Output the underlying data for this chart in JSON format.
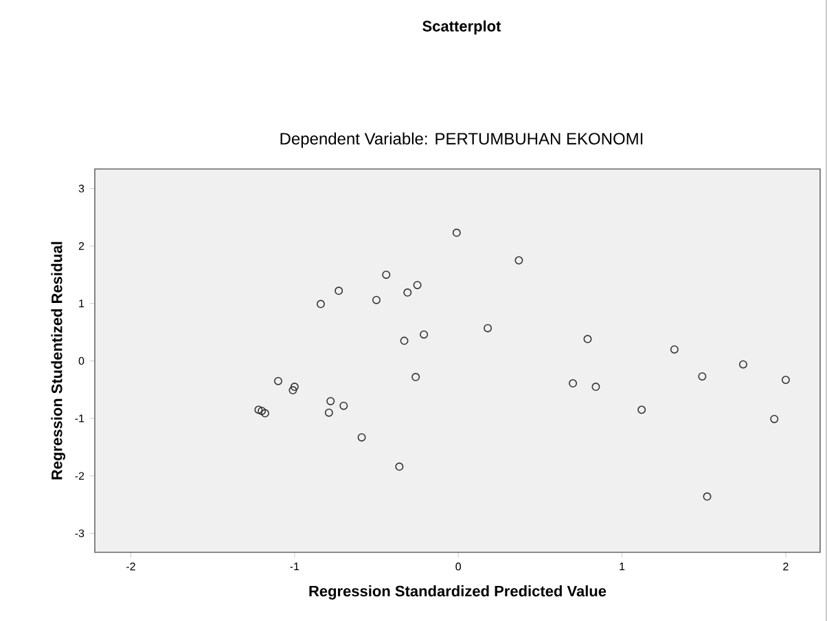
{
  "chart_data": {
    "type": "scatter",
    "title": "Scatterplot",
    "subtitle": "Dependent Variable: PERTUMBUHAN EKONOMI",
    "xlabel": "Regression Standardized Predicted Value",
    "ylabel": "Regression Studentized Residual",
    "x": [
      -0.01,
      -0.44,
      -0.73,
      -0.84,
      -0.5,
      -0.31,
      -0.25,
      -0.33,
      -0.21,
      -0.26,
      -1.1,
      -1.0,
      -1.01,
      -1.22,
      -1.2,
      -1.18,
      -0.78,
      -0.79,
      -0.7,
      -0.59,
      -0.36,
      0.37,
      0.18,
      0.79,
      0.7,
      0.84,
      1.12,
      1.32,
      1.49,
      1.74,
      2.0,
      1.93,
      1.52
    ],
    "values": [
      2.23,
      1.5,
      1.22,
      0.99,
      1.06,
      1.19,
      1.32,
      0.35,
      0.46,
      -0.28,
      -0.35,
      -0.45,
      -0.51,
      -0.85,
      -0.87,
      -0.91,
      -0.7,
      -0.9,
      -0.78,
      -1.33,
      -1.84,
      1.75,
      0.57,
      0.38,
      -0.39,
      -0.45,
      -0.85,
      0.2,
      -0.27,
      -0.06,
      -0.33,
      -1.01,
      -2.36
    ],
    "color": "#333333",
    "marker": "circle",
    "xlim": [
      -2.22,
      2.21
    ],
    "ylim": [
      -3.33,
      3.34
    ],
    "xticks": [
      -2,
      -1,
      0,
      1,
      2
    ],
    "yticks": [
      -3,
      -2,
      -1,
      0,
      1,
      2,
      3
    ]
  }
}
